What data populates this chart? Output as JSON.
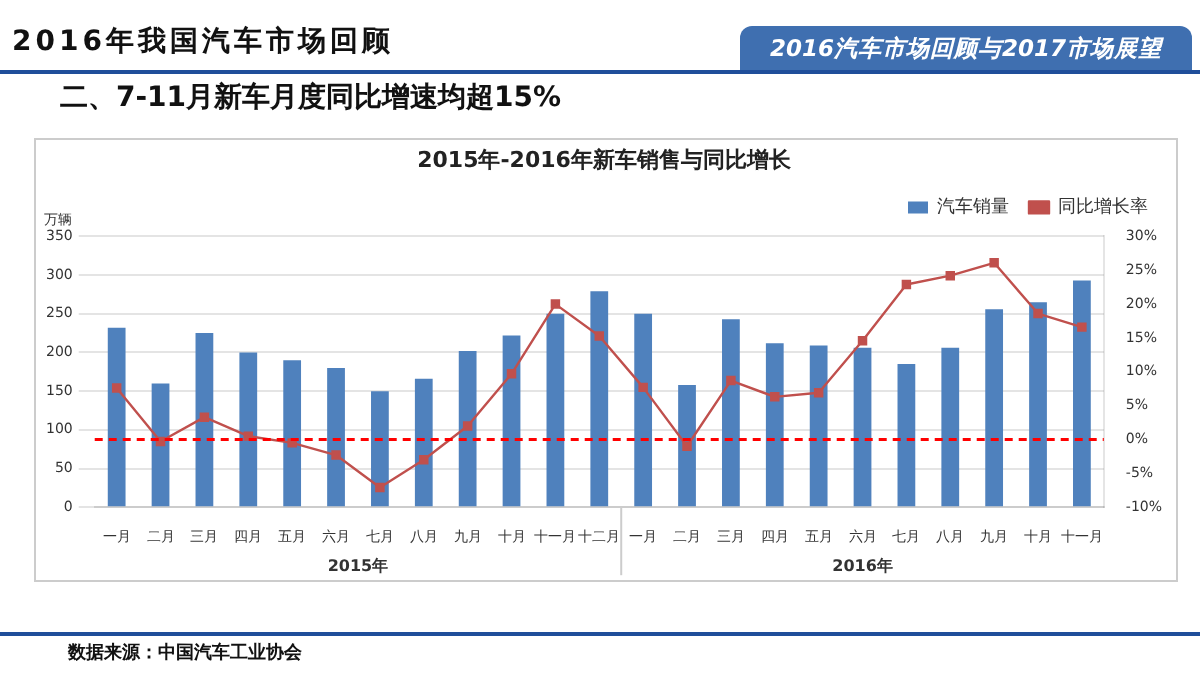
{
  "chart_data": {
    "type": "bar",
    "title": "2015年-2016年新车销售与同比增长",
    "subtitle": "二、7-11月新车月度同比增速均超15%",
    "ylabel": "万辆",
    "categories": [
      "一月",
      "二月",
      "三月",
      "四月",
      "五月",
      "六月",
      "七月",
      "八月",
      "九月",
      "十月",
      "十一月",
      "十二月",
      "一月",
      "二月",
      "三月",
      "四月",
      "五月",
      "六月",
      "七月",
      "八月",
      "九月",
      "十月",
      "十一月"
    ],
    "series": [
      {
        "name": "汽车销量",
        "color": "#4f81bd",
        "values": [
          232,
          160,
          225,
          200,
          190,
          180,
          150,
          166,
          202,
          222,
          250,
          279,
          250,
          158,
          243,
          212,
          209,
          206,
          185,
          206,
          256,
          265,
          293
        ]
      },
      {
        "name": "同比增长率",
        "type": "line",
        "axis": "y2",
        "color": "#c0504d",
        "marker": "square",
        "values": [
          7.6,
          -0.3,
          3.3,
          0.5,
          -0.5,
          -2.3,
          -7.1,
          -3.0,
          2.0,
          9.7,
          20.0,
          15.3,
          7.7,
          -1.0,
          8.7,
          6.3,
          6.9,
          14.6,
          22.9,
          24.2,
          26.1,
          18.6,
          16.6
        ]
      }
    ],
    "ylim": [
      0,
      350
    ],
    "yticks": [
      0,
      50,
      100,
      150,
      200,
      250,
      300,
      350
    ],
    "y2lim": [
      -10,
      30
    ],
    "y2ticks": [
      {
        "value": -10,
        "label": "-10%"
      },
      {
        "value": -5,
        "label": "-5%"
      },
      {
        "value": 0,
        "label": "0%"
      },
      {
        "value": 5,
        "label": "5%"
      },
      {
        "value": 10,
        "label": "10%"
      },
      {
        "value": 15,
        "label": "15%"
      },
      {
        "value": 20,
        "label": "20%"
      },
      {
        "value": 25,
        "label": "25%"
      },
      {
        "value": 30,
        "label": "30%"
      }
    ],
    "ref_lines": [
      {
        "axis": "y2",
        "value": 0,
        "color": "#ff0000",
        "line_style": "dashed"
      }
    ],
    "grid": "y",
    "legend": "top right",
    "annotations": [
      "2016年我国汽车市场回顾",
      "2016汽车市场回顾与2017市场展望",
      "2015年",
      "2016年",
      "数据来源：中国汽车工业协会"
    ]
  }
}
